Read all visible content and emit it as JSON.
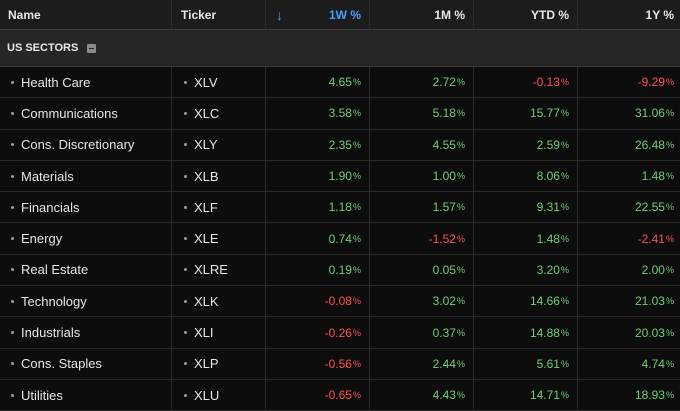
{
  "header": {
    "name": "Name",
    "ticker": "Ticker",
    "w1": "1W %",
    "m1": "1M %",
    "ytd": "YTD %",
    "y1": "1Y %",
    "sort_arrow": "↓"
  },
  "group": {
    "label": "US SECTORS"
  },
  "rows": [
    {
      "name": "Health Care",
      "ticker": "XLV",
      "w1": "4.65",
      "m1": "2.72",
      "ytd": "-0.13",
      "y1": "-9.29"
    },
    {
      "name": "Communications",
      "ticker": "XLC",
      "w1": "3.58",
      "m1": "5.18",
      "ytd": "15.77",
      "y1": "31.06"
    },
    {
      "name": "Cons. Discretionary",
      "ticker": "XLY",
      "w1": "2.35",
      "m1": "4.55",
      "ytd": "2.59",
      "y1": "26.48"
    },
    {
      "name": "Materials",
      "ticker": "XLB",
      "w1": "1.90",
      "m1": "1.00",
      "ytd": "8.06",
      "y1": "1.48"
    },
    {
      "name": "Financials",
      "ticker": "XLF",
      "w1": "1.18",
      "m1": "1.57",
      "ytd": "9.31",
      "y1": "22.55"
    },
    {
      "name": "Energy",
      "ticker": "XLE",
      "w1": "0.74",
      "m1": "-1.52",
      "ytd": "1.48",
      "y1": "-2.41"
    },
    {
      "name": "Real Estate",
      "ticker": "XLRE",
      "w1": "0.19",
      "m1": "0.05",
      "ytd": "3.20",
      "y1": "2.00"
    },
    {
      "name": "Technology",
      "ticker": "XLK",
      "w1": "-0.08",
      "m1": "3.02",
      "ytd": "14.66",
      "y1": "21.03"
    },
    {
      "name": "Industrials",
      "ticker": "XLI",
      "w1": "-0.26",
      "m1": "0.37",
      "ytd": "14.88",
      "y1": "20.03"
    },
    {
      "name": "Cons. Staples",
      "ticker": "XLP",
      "w1": "-0.56",
      "m1": "2.44",
      "ytd": "5.61",
      "y1": "4.74"
    },
    {
      "name": "Utilities",
      "ticker": "XLU",
      "w1": "-0.65",
      "m1": "4.43",
      "ytd": "14.71",
      "y1": "18.93"
    }
  ],
  "percent_sign": "%",
  "colors": {
    "positive": "#6fcf73",
    "negative": "#ff5050",
    "sort_accent": "#4a9cff",
    "background": "#0d0d0d"
  },
  "icons": {
    "sort": "sort-descending-arrow",
    "collapse": "collapse-minus",
    "row_bullet": "bullet-dot"
  }
}
